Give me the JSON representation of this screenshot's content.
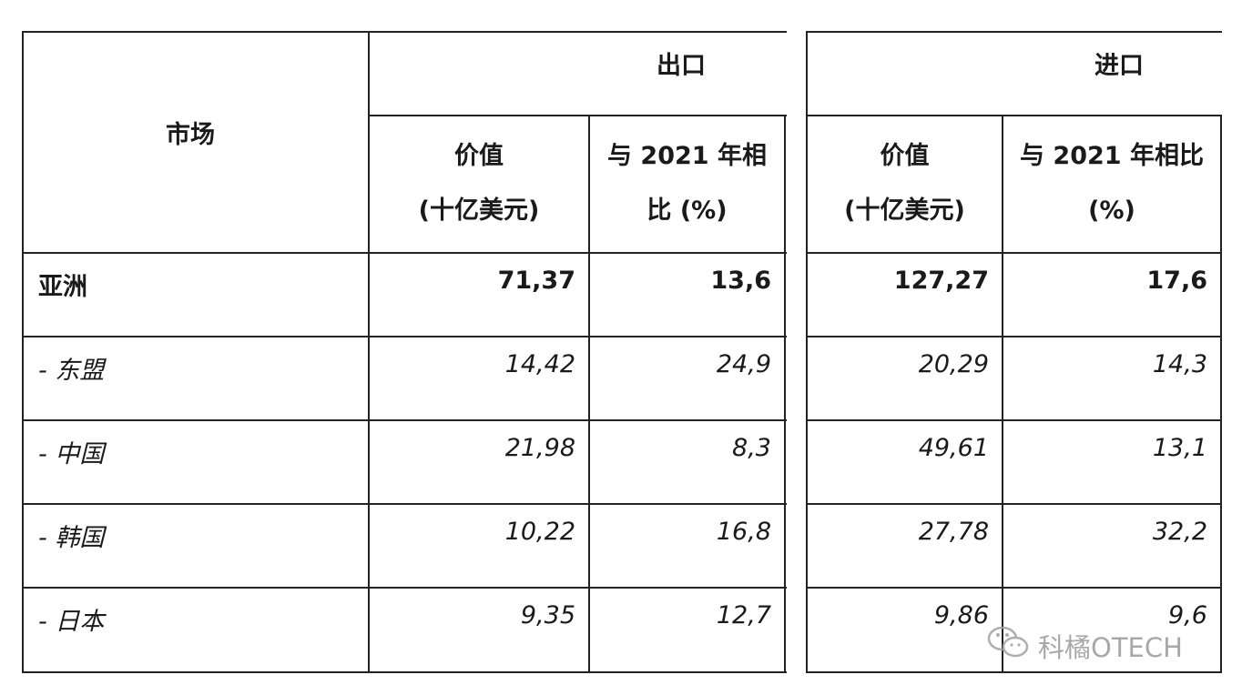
{
  "table": {
    "market_header": "市场",
    "export_header": "出口",
    "import_header": "进口",
    "export_value_header": [
      "价值",
      "(十亿美元)"
    ],
    "export_change_header": [
      "与 2021 年相",
      "比 (%)"
    ],
    "import_value_header": [
      "价值",
      "(十亿美元)"
    ],
    "import_change_header": [
      "与 2021 年相比",
      "(%)"
    ],
    "rows": [
      {
        "market": "亚洲",
        "export_value": "71,37",
        "export_change": "13,6",
        "import_value": "127,27",
        "import_change": "17,6",
        "style": "bold"
      },
      {
        "market": "- 东盟",
        "export_value": "14,42",
        "export_change": "24,9",
        "import_value": "20,29",
        "import_change": "14,3",
        "style": "italic"
      },
      {
        "market": "- 中国",
        "export_value": "21,98",
        "export_change": "8,3",
        "import_value": "49,61",
        "import_change": "13,1",
        "style": "italic"
      },
      {
        "market": "- 韩国",
        "export_value": "10,22",
        "export_change": "16,8",
        "import_value": "27,78",
        "import_change": "32,2",
        "style": "italic"
      },
      {
        "market": "- 日本",
        "export_value": "9,35",
        "export_change": "12,7",
        "import_value": "9,86",
        "import_change": "9,6",
        "style": "italic"
      }
    ]
  },
  "watermark": {
    "icon": "wechat-icon",
    "text": "科橘OTECH"
  }
}
